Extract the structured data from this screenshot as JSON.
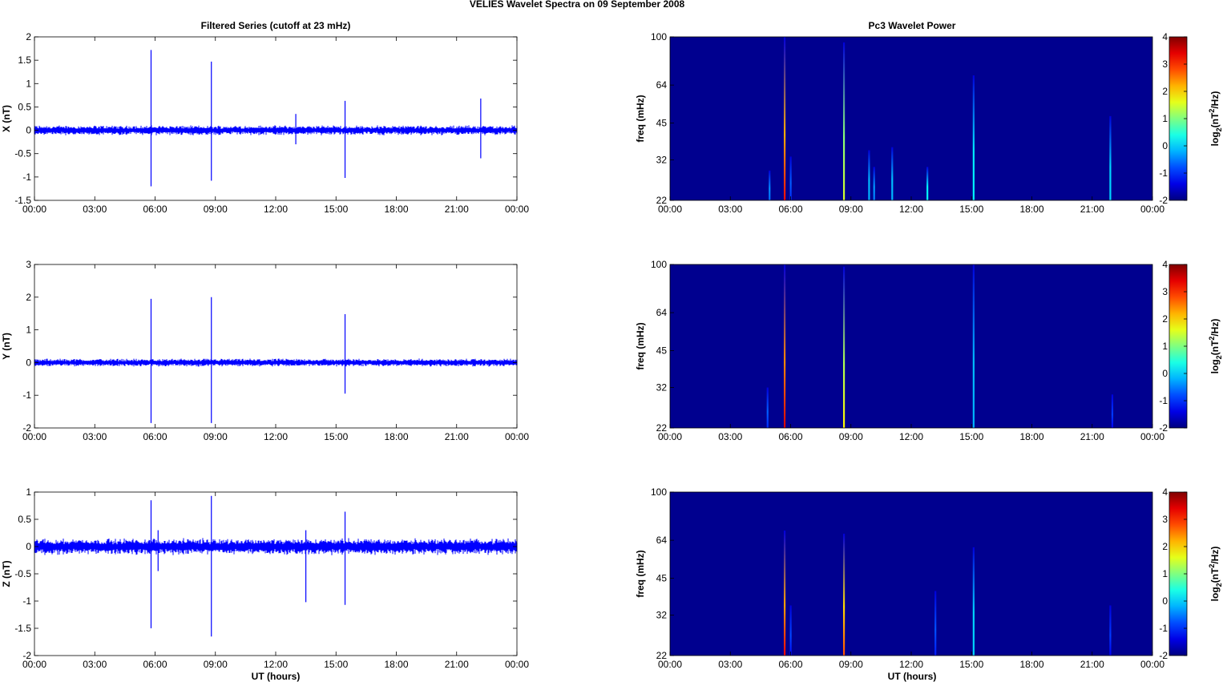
{
  "figure": {
    "title": "VELIES Wavelet Spectra on 09 September 2008",
    "left_title": "Filtered Series (cutoff at 23 mHz)",
    "right_title": "Pc3 Wavelet Power",
    "xlabel": "UT (hours)",
    "spec_ylabel": "freq (mHz)",
    "cb_label_base": "log",
    "cb_label_sub": "2",
    "cb_label_mid": "(nT",
    "cb_label_sup": "2",
    "cb_label_end": "/Hz)"
  },
  "colors": {
    "trace": "#0000ff",
    "background": "#00008f",
    "colormap": "jet"
  },
  "chart_data": [
    {
      "type": "line",
      "ylabel": "X (nT)",
      "xlim": [
        0,
        24
      ],
      "ylim": [
        -1.5,
        2
      ],
      "xticks": [
        "00:00",
        "03:00",
        "06:00",
        "09:00",
        "12:00",
        "15:00",
        "18:00",
        "21:00",
        "00:00"
      ],
      "yticks": [
        "-1.5",
        "-1",
        "-0.5",
        "0",
        "0.5",
        "1",
        "1.5",
        "2"
      ],
      "yticks_values": [
        -1.5,
        -1,
        -0.5,
        0,
        0.5,
        1,
        1.5,
        2
      ],
      "noise_amplitude": 0.07,
      "spikes": [
        {
          "t": 5.8,
          "max": 1.72,
          "min": -1.2
        },
        {
          "t": 8.8,
          "max": 1.47,
          "min": -1.08
        },
        {
          "t": 15.45,
          "max": 0.63,
          "min": -1.02
        },
        {
          "t": 22.2,
          "max": 0.68,
          "min": -0.6
        },
        {
          "t": 13.0,
          "max": 0.35,
          "min": -0.3
        }
      ]
    },
    {
      "type": "line",
      "ylabel": "Y (nT)",
      "xlim": [
        0,
        24
      ],
      "ylim": [
        -2,
        3
      ],
      "xticks": [
        "00:00",
        "03:00",
        "06:00",
        "09:00",
        "12:00",
        "15:00",
        "18:00",
        "21:00",
        "00:00"
      ],
      "yticks": [
        "-2",
        "-1",
        "0",
        "1",
        "2",
        "3"
      ],
      "yticks_values": [
        -2,
        -1,
        0,
        1,
        2,
        3
      ],
      "noise_amplitude": 0.08,
      "spikes": [
        {
          "t": 5.8,
          "max": 1.95,
          "min": -1.85
        },
        {
          "t": 8.8,
          "max": 2.0,
          "min": -1.85
        },
        {
          "t": 15.45,
          "max": 1.48,
          "min": -0.95
        }
      ]
    },
    {
      "type": "line",
      "ylabel": "Z (nT)",
      "xlim": [
        0,
        24
      ],
      "ylim": [
        -2,
        1
      ],
      "xticks": [
        "00:00",
        "03:00",
        "06:00",
        "09:00",
        "12:00",
        "15:00",
        "18:00",
        "21:00",
        "00:00"
      ],
      "yticks": [
        "-2",
        "-1.5",
        "-1",
        "-0.5",
        "0",
        "0.5",
        "1"
      ],
      "yticks_values": [
        -2,
        -1.5,
        -1,
        -0.5,
        0,
        0.5,
        1
      ],
      "noise_amplitude": 0.1,
      "spikes": [
        {
          "t": 5.8,
          "max": 0.85,
          "min": -1.5
        },
        {
          "t": 8.8,
          "max": 0.93,
          "min": -1.65
        },
        {
          "t": 13.5,
          "max": 0.3,
          "min": -1.02
        },
        {
          "t": 15.45,
          "max": 0.64,
          "min": -1.07
        },
        {
          "t": 6.15,
          "max": 0.3,
          "min": -0.45
        }
      ]
    },
    {
      "type": "heatmap",
      "xlim": [
        0,
        24
      ],
      "ylim_mHz": [
        22,
        100
      ],
      "yscale": "log",
      "xticks": [
        "00:00",
        "03:00",
        "06:00",
        "09:00",
        "12:00",
        "15:00",
        "18:00",
        "21:00",
        "00:00"
      ],
      "yticks": [
        "22",
        "32",
        "45",
        "64",
        "100"
      ],
      "yticks_values": [
        22,
        32,
        45,
        64,
        100
      ],
      "clim": [
        -2,
        4
      ],
      "cticks": [
        "-2",
        "-1",
        "0",
        "1",
        "2",
        "3",
        "4"
      ],
      "events": [
        {
          "t": 5.7,
          "power": 3.2,
          "top_mHz": 100
        },
        {
          "t": 8.65,
          "power": 1.5,
          "top_mHz": 95
        },
        {
          "t": 15.1,
          "power": 0.2,
          "top_mHz": 70
        },
        {
          "t": 4.95,
          "power": -0.6,
          "top_mHz": 29
        },
        {
          "t": 6.0,
          "power": -1.0,
          "top_mHz": 33
        },
        {
          "t": 9.9,
          "power": -0.2,
          "top_mHz": 35
        },
        {
          "t": 10.15,
          "power": -0.5,
          "top_mHz": 30
        },
        {
          "t": 11.05,
          "power": -0.2,
          "top_mHz": 36
        },
        {
          "t": 12.8,
          "power": 0.3,
          "top_mHz": 30
        },
        {
          "t": 21.9,
          "power": 0.0,
          "top_mHz": 48
        }
      ]
    },
    {
      "type": "heatmap",
      "xlim": [
        0,
        24
      ],
      "ylim_mHz": [
        22,
        100
      ],
      "yscale": "log",
      "xticks": [
        "00:00",
        "03:00",
        "06:00",
        "09:00",
        "12:00",
        "15:00",
        "18:00",
        "21:00",
        "00:00"
      ],
      "yticks": [
        "22",
        "32",
        "45",
        "64",
        "100"
      ],
      "yticks_values": [
        22,
        32,
        45,
        64,
        100
      ],
      "clim": [
        -2,
        4
      ],
      "cticks": [
        "-2",
        "-1",
        "0",
        "1",
        "2",
        "3",
        "4"
      ],
      "events": [
        {
          "t": 5.7,
          "power": 3.5,
          "top_mHz": 100
        },
        {
          "t": 8.65,
          "power": 1.8,
          "top_mHz": 98
        },
        {
          "t": 15.1,
          "power": -0.2,
          "top_mHz": 100
        },
        {
          "t": 4.85,
          "power": -1.0,
          "top_mHz": 32
        },
        {
          "t": 22.0,
          "power": -1.3,
          "top_mHz": 30
        }
      ]
    },
    {
      "type": "heatmap",
      "xlim": [
        0,
        24
      ],
      "ylim_mHz": [
        22,
        100
      ],
      "yscale": "log",
      "xticks": [
        "00:00",
        "03:00",
        "06:00",
        "09:00",
        "12:00",
        "15:00",
        "18:00",
        "21:00",
        "00:00"
      ],
      "yticks": [
        "22",
        "32",
        "45",
        "64",
        "100"
      ],
      "yticks_values": [
        22,
        32,
        45,
        64,
        100
      ],
      "clim": [
        -2,
        4
      ],
      "cticks": [
        "-2",
        "-1",
        "0",
        "1",
        "2",
        "3",
        "4"
      ],
      "events": [
        {
          "t": 5.7,
          "power": 3.3,
          "top_mHz": 70
        },
        {
          "t": 8.65,
          "power": 2.8,
          "top_mHz": 68
        },
        {
          "t": 15.1,
          "power": 0.0,
          "top_mHz": 60
        },
        {
          "t": 13.2,
          "power": -1.1,
          "top_mHz": 40
        },
        {
          "t": 6.0,
          "power": -1.2,
          "top_mHz": 35
        },
        {
          "t": 21.9,
          "power": -1.3,
          "top_mHz": 35
        }
      ]
    }
  ]
}
